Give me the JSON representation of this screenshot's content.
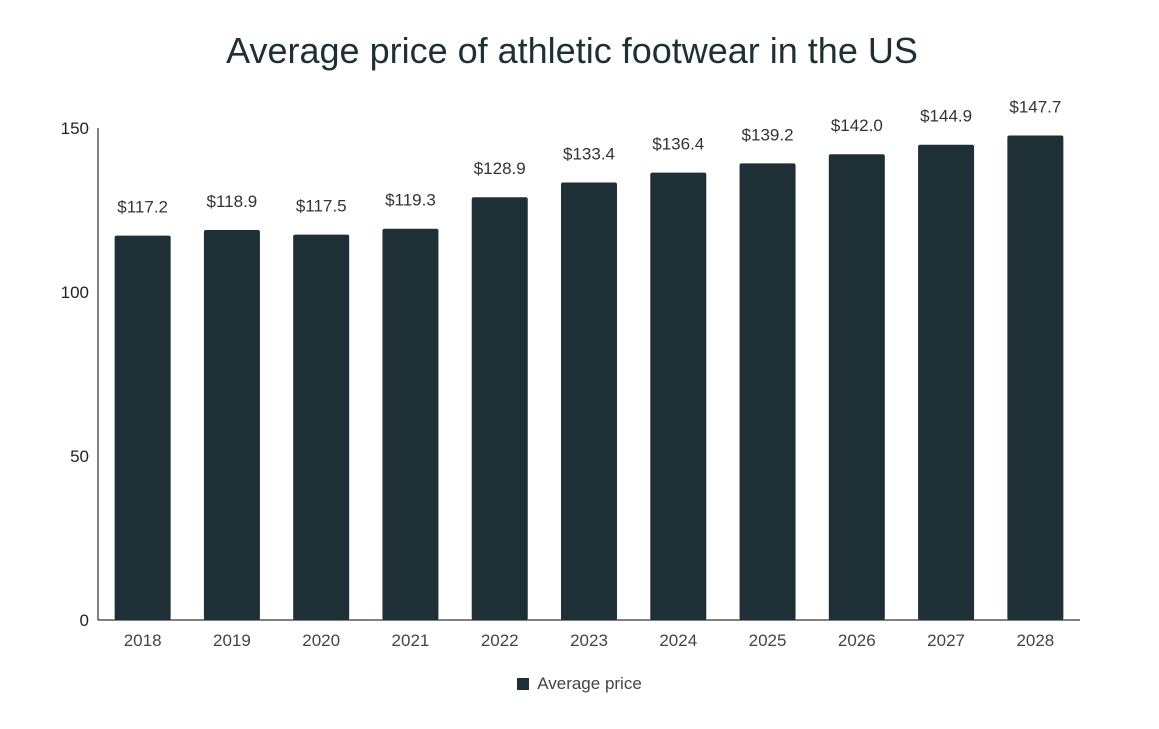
{
  "chart_data": {
    "type": "bar",
    "title": "Average price of athletic footwear in the US",
    "xlabel": "",
    "ylabel": "",
    "categories": [
      "2018",
      "2019",
      "2020",
      "2021",
      "2022",
      "2023",
      "2024",
      "2025",
      "2026",
      "2027",
      "2028"
    ],
    "series": [
      {
        "name": "Average price",
        "values": [
          117.2,
          118.9,
          117.5,
          119.3,
          128.9,
          133.4,
          136.4,
          139.2,
          142.0,
          144.9,
          147.7
        ],
        "labels": [
          "$117.2",
          "$118.9",
          "$117.5",
          "$119.3",
          "$128.9",
          "$133.4",
          "$136.4",
          "$139.2",
          "$142.0",
          "$144.9",
          "$147.7"
        ]
      }
    ],
    "ylim": [
      0,
      150
    ],
    "yticks": [
      0,
      50,
      100,
      150
    ],
    "grid": false,
    "legend_position": "bottom-center",
    "bar_color": "#1e3035"
  }
}
